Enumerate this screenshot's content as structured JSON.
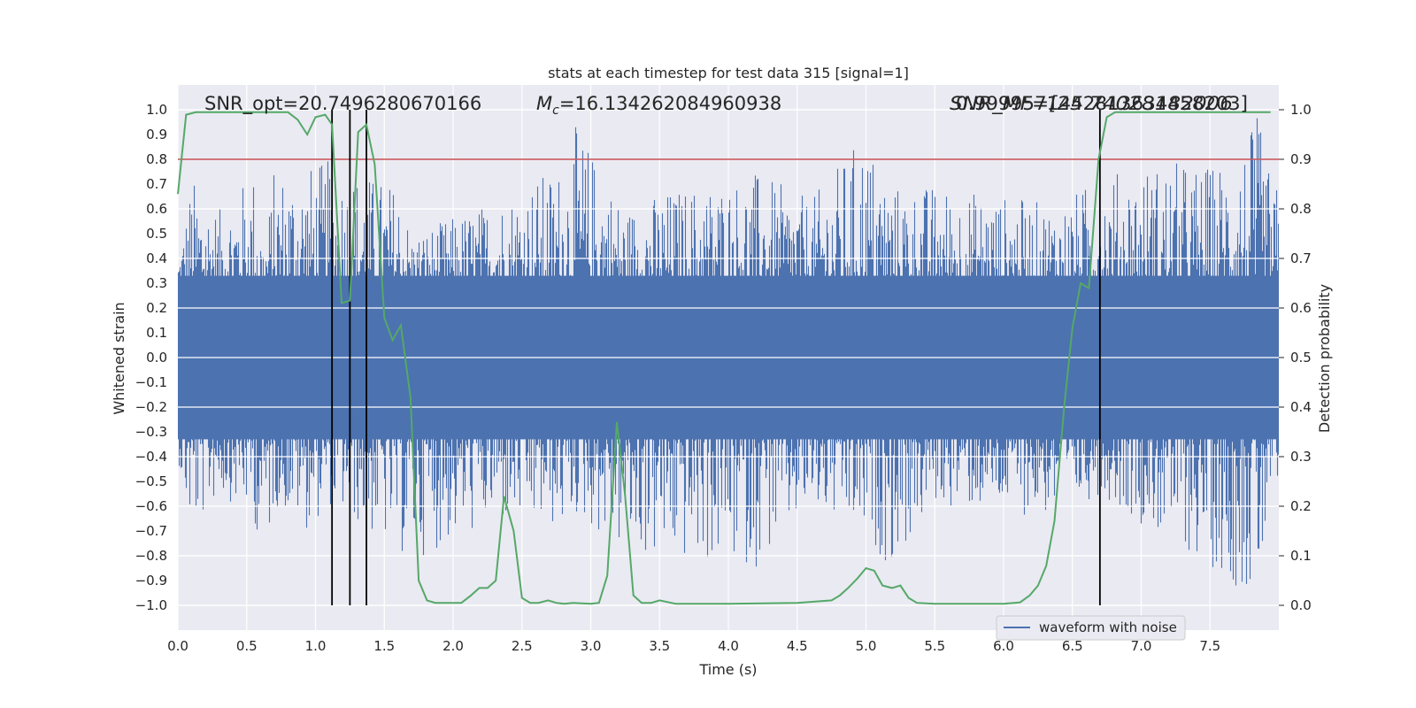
{
  "chart_data": {
    "type": "line",
    "title": "stats at each timestep for test data 315 [signal=1]",
    "xlabel": "Time (s)",
    "ylabel": "Whitened strain",
    "y2label": "Detection probability",
    "xlim": [
      0,
      8.0
    ],
    "ylim": [
      -1.1,
      1.1
    ],
    "y2lim": [
      -0.05,
      1.05
    ],
    "xticks": [
      0.0,
      0.5,
      1.0,
      1.5,
      2.0,
      2.5,
      3.0,
      3.5,
      4.0,
      4.5,
      5.0,
      5.5,
      6.0,
      6.5,
      7.0,
      7.5
    ],
    "xtick_labels": [
      "0.0",
      "0.5",
      "1.0",
      "1.5",
      "2.0",
      "2.5",
      "3.0",
      "3.5",
      "4.0",
      "4.5",
      "5.0",
      "5.5",
      "6.0",
      "6.5",
      "7.0",
      "7.5"
    ],
    "yticks": [
      1.0,
      0.9,
      0.8,
      0.7,
      0.6,
      0.5,
      0.4,
      0.3,
      0.2,
      0.1,
      0.0,
      -0.1,
      -0.2,
      -0.3,
      -0.4,
      -0.5,
      -0.6,
      -0.7,
      -0.8,
      -0.9,
      -1.0
    ],
    "ytick_labels": [
      "1.0",
      "0.9",
      "0.8",
      "0.7",
      "0.6",
      "0.5",
      "0.4",
      "0.3",
      "0.2",
      "0.1",
      "0.0",
      "−0.1",
      "−0.2",
      "−0.3",
      "−0.4",
      "−0.5",
      "−0.6",
      "−0.7",
      "−0.8",
      "−0.9",
      "−1.0"
    ],
    "y2ticks": [
      1.0,
      0.9,
      0.8,
      0.7,
      0.6,
      0.5,
      0.4,
      0.3,
      0.2,
      0.1,
      0.0
    ],
    "y2tick_labels": [
      "1.0",
      "0.9",
      "0.8",
      "0.7",
      "0.6",
      "0.5",
      "0.4",
      "0.3",
      "0.2",
      "0.1",
      "0.0"
    ],
    "grid": true,
    "legend": {
      "position": "lower-right",
      "entries": [
        "waveform with noise"
      ]
    },
    "annotations": {
      "snr_opt": "SNR_opt=20.7496280670166",
      "mc_symbol": "M",
      "mc_sub": "c",
      "mc_value": "=16.134262084960938",
      "overlap_a": "SNR_MF=[25.74028182006",
      "overlap_b": "0.9999571442813634458203]"
    },
    "threshold": {
      "value": 0.9,
      "axis": "y2",
      "color": "#c44e52"
    },
    "vlines": [
      1.12,
      1.25,
      1.37,
      6.7
    ],
    "colors": {
      "strain": "#4c72b0",
      "probability": "#55a868",
      "threshold": "#c44e52",
      "vline": "#000000",
      "plot_bg": "#eaeaf2",
      "grid": "#ffffff"
    },
    "series": [
      {
        "name": "waveform with noise",
        "axis": "y",
        "type": "noise-envelope",
        "envelope_points": [
          [
            0.0,
            0.4,
            -0.4
          ],
          [
            0.05,
            0.56,
            -0.6
          ],
          [
            0.1,
            0.73,
            -0.73
          ],
          [
            0.3,
            0.6,
            -0.55
          ],
          [
            0.55,
            0.76,
            -0.65
          ],
          [
            0.63,
            0.45,
            -0.86
          ],
          [
            0.7,
            0.77,
            -0.6
          ],
          [
            0.95,
            0.78,
            -0.7
          ],
          [
            1.1,
            0.8,
            -0.6
          ],
          [
            1.6,
            0.7,
            -0.8
          ],
          [
            1.7,
            0.5,
            -0.82
          ],
          [
            2.3,
            0.64,
            -0.68
          ],
          [
            2.8,
            0.79,
            -0.7
          ],
          [
            2.9,
            0.95,
            -0.65
          ],
          [
            3.25,
            0.6,
            -0.8
          ],
          [
            3.5,
            0.67,
            -0.83
          ],
          [
            4.2,
            0.75,
            -0.85
          ],
          [
            4.6,
            0.64,
            -0.62
          ],
          [
            4.98,
            0.91,
            -0.75
          ],
          [
            5.2,
            0.7,
            -0.85
          ],
          [
            5.5,
            0.7,
            -0.6
          ],
          [
            6.4,
            0.62,
            -0.65
          ],
          [
            6.7,
            0.74,
            -0.55
          ],
          [
            7.2,
            0.8,
            -0.75
          ],
          [
            7.5,
            0.78,
            -0.85
          ],
          [
            7.75,
            0.88,
            -0.95
          ],
          [
            7.85,
            0.98,
            -1.0
          ],
          [
            7.95,
            0.7,
            -0.6
          ]
        ]
      },
      {
        "name": "detection probability",
        "axis": "y2",
        "x": [
          0.0,
          0.06,
          0.13,
          0.25,
          0.5,
          0.8,
          0.87,
          0.94,
          1.0,
          1.07,
          1.12,
          1.19,
          1.25,
          1.31,
          1.37,
          1.43,
          1.5,
          1.56,
          1.62,
          1.69,
          1.75,
          1.81,
          1.87,
          2.0,
          2.06,
          2.13,
          2.19,
          2.25,
          2.31,
          2.37,
          2.44,
          2.5,
          2.56,
          2.62,
          2.69,
          2.75,
          2.81,
          2.87,
          3.0,
          3.06,
          3.12,
          3.19,
          3.25,
          3.31,
          3.37,
          3.44,
          3.5,
          3.62,
          4.0,
          4.5,
          4.75,
          4.81,
          4.87,
          4.94,
          5.0,
          5.06,
          5.12,
          5.19,
          5.25,
          5.31,
          5.37,
          5.5,
          5.75,
          6.0,
          6.12,
          6.19,
          6.25,
          6.31,
          6.37,
          6.44,
          6.5,
          6.56,
          6.62,
          6.69,
          6.75,
          6.81,
          6.87,
          7.0,
          7.5,
          7.75,
          7.94
        ],
        "y": [
          0.83,
          0.99,
          0.995,
          0.995,
          0.995,
          0.995,
          0.98,
          0.95,
          0.985,
          0.99,
          0.97,
          0.61,
          0.615,
          0.955,
          0.97,
          0.89,
          0.58,
          0.535,
          0.565,
          0.42,
          0.05,
          0.01,
          0.005,
          0.005,
          0.005,
          0.02,
          0.035,
          0.035,
          0.05,
          0.22,
          0.15,
          0.015,
          0.005,
          0.005,
          0.01,
          0.005,
          0.003,
          0.005,
          0.003,
          0.005,
          0.06,
          0.37,
          0.22,
          0.02,
          0.005,
          0.005,
          0.01,
          0.003,
          0.003,
          0.005,
          0.01,
          0.02,
          0.035,
          0.055,
          0.075,
          0.07,
          0.04,
          0.035,
          0.04,
          0.015,
          0.005,
          0.003,
          0.003,
          0.003,
          0.006,
          0.02,
          0.04,
          0.08,
          0.17,
          0.4,
          0.56,
          0.65,
          0.64,
          0.9,
          0.985,
          0.995,
          0.995,
          0.995,
          0.995,
          0.995,
          0.995
        ]
      }
    ]
  }
}
